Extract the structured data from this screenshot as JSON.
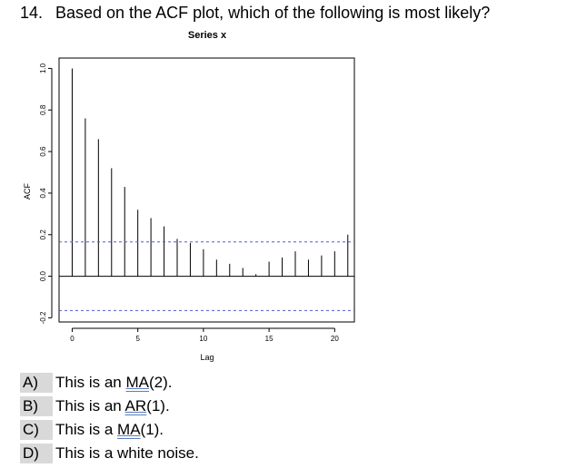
{
  "question": {
    "number": "14.",
    "text": "Based on the ACF plot, which of the following is most likely?"
  },
  "chart_data": {
    "type": "bar",
    "title": "Series  x",
    "xlabel": "Lag",
    "ylabel": "ACF",
    "xlim": [
      -1,
      21.5
    ],
    "ylim": [
      -0.22,
      1.05
    ],
    "x_ticks": [
      0,
      5,
      10,
      15,
      20
    ],
    "y_ticks": [
      -0.2,
      0.0,
      0.2,
      0.4,
      0.6,
      0.8,
      1.0
    ],
    "x_tick_labels": [
      "0",
      "5",
      "10",
      "15",
      "20"
    ],
    "y_tick_labels": [
      "-0.2",
      "0.0",
      "0.2",
      "0.4",
      "0.6",
      "0.8",
      "1.0"
    ],
    "lags": [
      0,
      1,
      2,
      3,
      4,
      5,
      6,
      7,
      8,
      9,
      10,
      11,
      12,
      13,
      14,
      15,
      16,
      17,
      18,
      19,
      20,
      21
    ],
    "values": [
      1.0,
      0.76,
      0.66,
      0.52,
      0.43,
      0.32,
      0.28,
      0.24,
      0.18,
      0.16,
      0.13,
      0.08,
      0.06,
      0.04,
      0.01,
      0.07,
      0.09,
      0.12,
      0.08,
      0.1,
      0.12,
      0.2
    ],
    "confidence_band": [
      0.165,
      -0.165
    ],
    "colors": {
      "bars": "#000000",
      "band": "#4a5fd0"
    }
  },
  "options": [
    {
      "letter": "A)",
      "text_pre": "This is an ",
      "text_ul": "MA",
      "text_post": "(2).",
      "highlighted": true
    },
    {
      "letter": "B)",
      "text_pre": "This is an ",
      "text_ul": "AR",
      "text_post": "(1).",
      "highlighted": true
    },
    {
      "letter": "C)",
      "text_pre": "This is a ",
      "text_ul": "MA",
      "text_post": "(1).",
      "highlighted": true
    },
    {
      "letter": "D)",
      "text_pre": "This is a white noise.",
      "text_ul": "",
      "text_post": "",
      "highlighted": true
    }
  ]
}
